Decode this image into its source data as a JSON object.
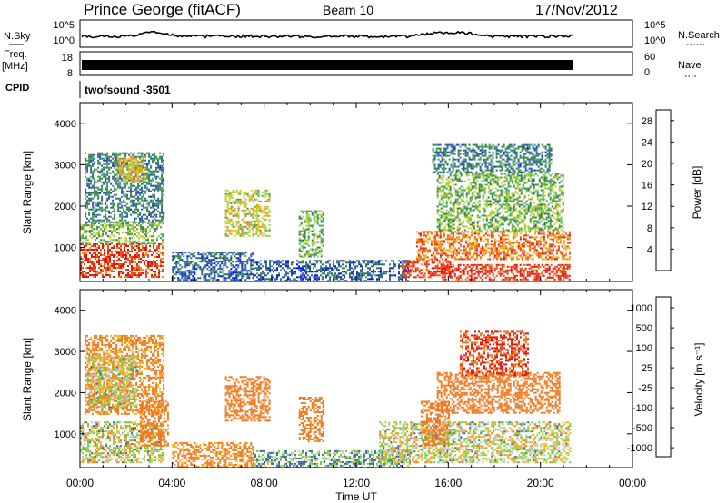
{
  "header": {
    "station": "Prince George (fitACF)",
    "beam": "Beam 10",
    "date": "17/Nov/2012"
  },
  "noise_panel": {
    "left_label": "N.Sky",
    "left_ticks": [
      "10^5",
      "10^0"
    ],
    "right_label": "N.Search",
    "right_ticks": [
      "10^5",
      "10^0"
    ]
  },
  "freq_panel": {
    "left_label_1": "Freq.",
    "left_label_2": "[MHz]",
    "left_ticks": [
      "18",
      "8"
    ],
    "right_label": "Nave",
    "right_ticks": [
      "60",
      "0"
    ]
  },
  "cpid": {
    "label": "CPID",
    "value": "twofsound -3501"
  },
  "colors": {
    "power_scale": [
      "#0a14e6",
      "#2a56b4",
      "#2f7d4a",
      "#4aa05a",
      "#9ad23c",
      "#e6c81e",
      "#f5901e",
      "#f05014",
      "#e61414"
    ],
    "velocity_scale": [
      "#1e3cc8",
      "#3c6ea0",
      "#2a8c46",
      "#6ed23c",
      "#c8c8c8",
      "#f0b428",
      "#f0781e",
      "#e61414"
    ]
  },
  "chart_data": [
    {
      "type": "heatmap",
      "title": "",
      "xlabel": "Time UT",
      "ylabel": "Slant Range [km]",
      "x_ticks": [
        "00:00",
        "04:00",
        "08:00",
        "12:00",
        "16:00",
        "20:00",
        "00:00"
      ],
      "y_ticks": [
        "1000",
        "2000",
        "3000",
        "4000"
      ],
      "xlim": [
        0,
        24
      ],
      "ylim": [
        180,
        4500
      ],
      "grid": false,
      "colorbar": {
        "label": "Power [dB]",
        "ticks": [
          "4",
          "8",
          "12",
          "16",
          "20",
          "24",
          "28"
        ],
        "range": [
          0,
          30
        ]
      },
      "regions": [
        {
          "t": [
            0.0,
            3.6
          ],
          "r": [
            300,
            1100
          ],
          "v": 26
        },
        {
          "t": [
            0.0,
            3.6
          ],
          "r": [
            1100,
            1600
          ],
          "v": 14
        },
        {
          "t": [
            0.2,
            3.6
          ],
          "r": [
            1600,
            3300
          ],
          "v": 8
        },
        {
          "t": [
            1.6,
            2.8
          ],
          "r": [
            2600,
            3200
          ],
          "v": 18
        },
        {
          "t": [
            4.0,
            7.5
          ],
          "r": [
            200,
            900
          ],
          "v": 6
        },
        {
          "t": [
            6.3,
            8.2
          ],
          "r": [
            1300,
            2400
          ],
          "v": 17
        },
        {
          "t": [
            9.5,
            10.6
          ],
          "r": [
            800,
            1900
          ],
          "v": 12
        },
        {
          "t": [
            7.5,
            14.3
          ],
          "r": [
            200,
            700
          ],
          "v": 6
        },
        {
          "t": [
            14.0,
            16.2
          ],
          "r": [
            300,
            700
          ],
          "v": 27
        },
        {
          "t": [
            14.6,
            21.3
          ],
          "r": [
            700,
            1400
          ],
          "v": 23
        },
        {
          "t": [
            15.7,
            21.3
          ],
          "r": [
            200,
            600
          ],
          "v": 27
        },
        {
          "t": [
            15.5,
            21.0
          ],
          "r": [
            1400,
            2800
          ],
          "v": 13
        },
        {
          "t": [
            15.3,
            20.5
          ],
          "r": [
            2800,
            3500
          ],
          "v": 8
        }
      ]
    },
    {
      "type": "heatmap",
      "title": "",
      "xlabel": "Time UT",
      "ylabel": "Slant Range [km]",
      "x_ticks": [
        "00:00",
        "04:00",
        "08:00",
        "12:00",
        "16:00",
        "20:00",
        "00:00"
      ],
      "y_ticks": [
        "1000",
        "2000",
        "3000",
        "4000"
      ],
      "xlim": [
        0,
        24
      ],
      "ylim": [
        180,
        4500
      ],
      "grid": false,
      "colorbar": {
        "label": "Velocity [m s⁻¹]",
        "ticks": [
          "1000",
          "500",
          "100",
          "25",
          "-25",
          "-100",
          "-500",
          "-1000"
        ],
        "range": [
          -1000,
          1000
        ]
      },
      "regions": [
        {
          "t": [
            0.0,
            3.6
          ],
          "r": [
            300,
            1300
          ],
          "v": 0
        },
        {
          "t": [
            2.6,
            3.8
          ],
          "r": [
            700,
            1800
          ],
          "v": -300
        },
        {
          "t": [
            0.2,
            3.6
          ],
          "r": [
            1500,
            3400
          ],
          "v": -150
        },
        {
          "t": [
            0.3,
            2.5
          ],
          "r": [
            1600,
            2900
          ],
          "v": 0
        },
        {
          "t": [
            4.0,
            7.5
          ],
          "r": [
            200,
            800
          ],
          "v": -150
        },
        {
          "t": [
            6.3,
            8.2
          ],
          "r": [
            1300,
            2400
          ],
          "v": -250
        },
        {
          "t": [
            9.5,
            10.6
          ],
          "r": [
            800,
            1900
          ],
          "v": -200
        },
        {
          "t": [
            7.5,
            14.3
          ],
          "r": [
            200,
            600
          ],
          "v": 80
        },
        {
          "t": [
            13.0,
            16.0
          ],
          "r": [
            300,
            1300
          ],
          "v": 0
        },
        {
          "t": [
            14.8,
            16.0
          ],
          "r": [
            700,
            1800
          ],
          "v": -250
        },
        {
          "t": [
            15.8,
            21.3
          ],
          "r": [
            300,
            1300
          ],
          "v": 0
        },
        {
          "t": [
            15.5,
            20.8
          ],
          "r": [
            1500,
            2500
          ],
          "v": -350
        },
        {
          "t": [
            16.5,
            19.5
          ],
          "r": [
            2400,
            3500
          ],
          "v": -500
        }
      ]
    }
  ]
}
